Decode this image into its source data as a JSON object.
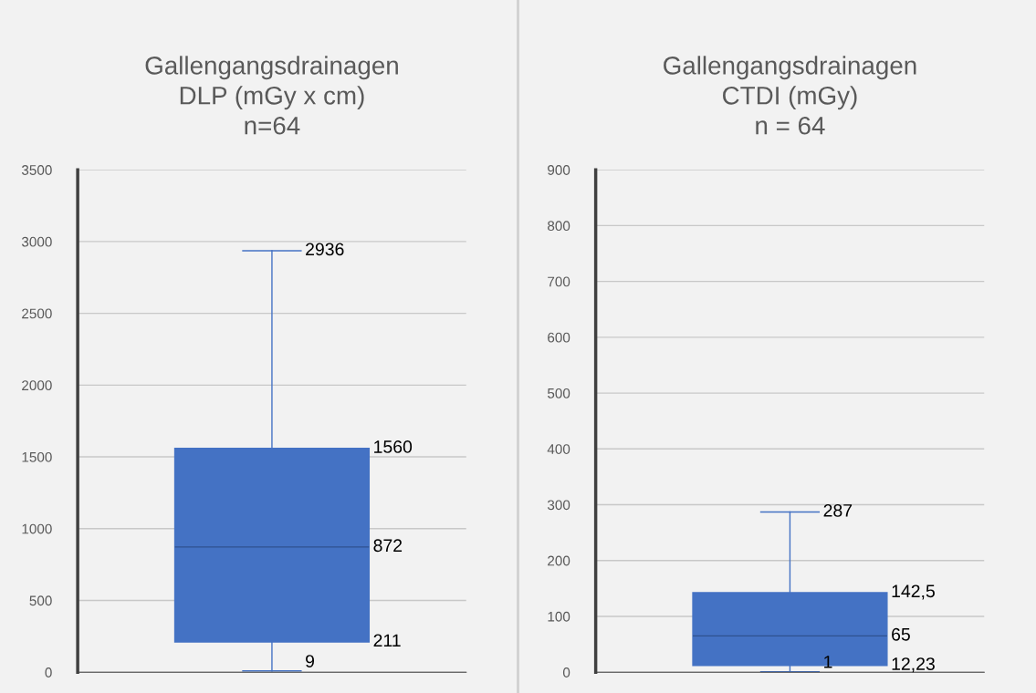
{
  "chart_data": [
    {
      "type": "box",
      "title": "Gallengangsdrainagen\nDLP (mGy x cm)\nn=64",
      "categories": [
        null
      ],
      "color": "#4472c4",
      "boxes": [
        {
          "low": 9,
          "q1": 211,
          "median": 872,
          "q3": 1560,
          "high": 2936
        }
      ],
      "annotations": [
        "9",
        "211",
        "872",
        "1560",
        "2936"
      ],
      "ylim": [
        0,
        3500
      ],
      "yticks": [
        0,
        500,
        1000,
        1500,
        2000,
        2500,
        3000,
        3500
      ],
      "grid": "y",
      "legend": false
    },
    {
      "type": "box",
      "title": "Gallengangsdrainagen\nCTDI (mGy)\nn = 64",
      "categories": [
        null
      ],
      "color": "#4472c4",
      "boxes": [
        {
          "low": 1,
          "q1": 12.23,
          "median": 65,
          "q3": 142.5,
          "high": 287
        }
      ],
      "annotations": [
        "1",
        "12,23",
        "65",
        "142,5",
        "287"
      ],
      "ylim": [
        0,
        900
      ],
      "yticks": [
        0,
        100,
        200,
        300,
        400,
        500,
        600,
        700,
        800,
        900
      ],
      "grid": "y",
      "legend": false
    }
  ]
}
